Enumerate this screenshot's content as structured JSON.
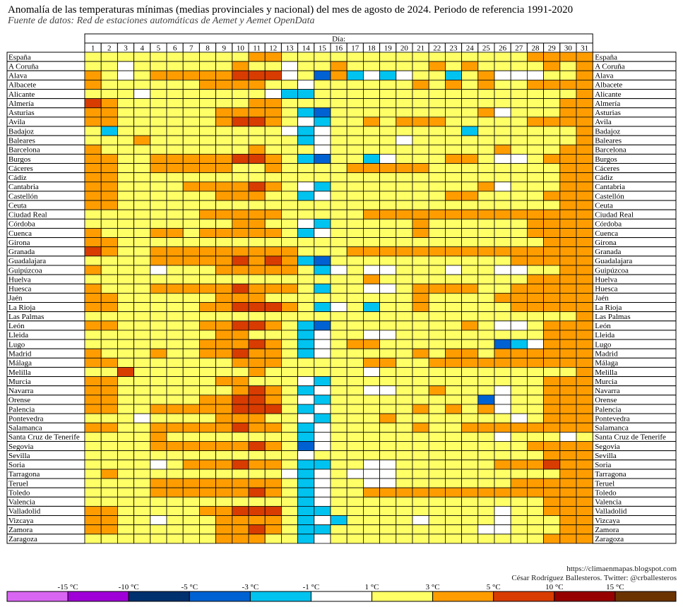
{
  "title": "Anomalía de las temperaturas mínimas (medias provinciales y nacional) del mes de agosto de 2024. Periodo de referencia 1991-2020",
  "subtitle": "Fuente de datos: Red de estaciones automáticas de Aemet y Aemet OpenData",
  "credits": {
    "url": "https://climaenmapas.blogspot.com",
    "author": "César Rodríguez Ballesteros. Twitter: @crballesteros"
  },
  "colors": {
    "grid": "#000000",
    "class_colors": [
      "#d966f2",
      "#a000d8",
      "#00306e",
      "#0062d2",
      "#00c3f0",
      "#ffffff",
      "#ffff66",
      "#ff9d00",
      "#d83c00",
      "#960000",
      "#6b3300"
    ]
  },
  "chart_data": {
    "type": "heatmap",
    "title": "Anomalía de las temperaturas mínimas (medias provinciales y nacional) del mes de agosto de 2024. Periodo de referencia 1991-2020",
    "column_header": "Día:",
    "columns": [
      "1",
      "2",
      "3",
      "4",
      "5",
      "6",
      "7",
      "8",
      "9",
      "10",
      "11",
      "12",
      "13",
      "14",
      "15",
      "16",
      "17",
      "18",
      "19",
      "20",
      "21",
      "22",
      "23",
      "24",
      "25",
      "26",
      "27",
      "28",
      "29",
      "30",
      "31"
    ],
    "rows": [
      "España",
      "A Coruña",
      "Alava",
      "Albacete",
      "Alicante",
      "Almería",
      "Asturias",
      "Avila",
      "Badajoz",
      "Baleares",
      "Barcelona",
      "Burgos",
      "Cáceres",
      "Cádiz",
      "Cantabria",
      "Castellón",
      "Ceuta",
      "Ciudad Real",
      "Córdoba",
      "Cuenca",
      "Girona",
      "Granada",
      "Guadalajara",
      "Guipúzcoa",
      "Huelva",
      "Huesca",
      "Jaén",
      "La Rioja",
      "Las Palmas",
      "León",
      "Lleida",
      "Lugo",
      "Madrid",
      "Málaga",
      "Melilla",
      "Murcia",
      "Navarra",
      "Orense",
      "Palencia",
      "Pontevedra",
      "Salamanca",
      "Santa Cruz de Tenerife",
      "Segovia",
      "Sevilla",
      "Soria",
      "Tarragona",
      "Teruel",
      "Toledo",
      "Valencia",
      "Valladolid",
      "Vizcaya",
      "Zamora",
      "Zaragoza"
    ],
    "classes": [
      "<-15 °C",
      "-15 a -10 °C",
      "-10 a -5 °C",
      "-5 a -3 °C",
      "-3 a -1 °C",
      "-1 a 1 °C",
      "1 a 3 °C",
      "3 a 5 °C",
      "5 a 10 °C",
      "10 a 15 °C",
      ">15 °C"
    ],
    "legend_ticks": [
      "-15 °C",
      "-10 °C",
      "-5 °C",
      "-3 °C",
      "-1 °C",
      "1 °C",
      "3 °C",
      "5 °C",
      "10 °C",
      "15 °C"
    ],
    "cell_classes": [
      "6666666666776666666666666667777",
      "6656666667665667666667676666767",
      "7656777778885637454566467555667",
      "7666666777766566666676767667777",
      "6665666666654466666666666666667",
      "8766666666776666666666666666677",
      "7766666677776436666666667566677",
      "7766666678876546676777666667777",
      "6466666666665456666666646666667",
      "6667666666666456666566666666667",
      "7666666666766656666666666766677",
      "7766777778876436645666776556777",
      "7766777776676666777776666666677",
      "7766666666666666666666666666677",
      "7766667777876546666666667566677",
      "7766666677766456666666776666777",
      "7766666666666666666666666666677",
      "6666666777776666677777777777777",
      "6666666667766546666676666667777",
      "7666776777776456666676666667777",
      "7766666666666666666666666666777",
      "8766777777777666777777777777777",
      "6666777778787436666666666677777",
      "7666566677777645655666566556677",
      "6666666666666666676666666667777",
      "7666777778777646655677776677777",
      "7766666677766666666676666777777",
      "7766666778887645646676666677777",
      "6666666666666666666666666666667",
      "7766666778876436666666676556777",
      "6666666677666456655666666666777",
      "6666666777876456776666666345777",
      "7666766778776456666676776777777",
      "7766666667776666677667777777777",
      "6686666666766666656666666666667",
      "7766666677666546666666666666777",
      "7766666667876456655667666566777",
      "7766666778876546666666663566777",
      "7766777778886456666676767566777",
      "6665666677766546667666666656777",
      "7766777778776456666676677777777",
      "6666766666666456666666666566656",
      "6666777777876356666666666667777",
      "6666666666666566666666666666777",
      "6666567778776446655666666777877",
      "6766666666665456555666666666677",
      "6666777777776456655666666677777",
      "6666777777876456677777777777777",
      "6666666666666456666666666666777",
      "7766666778886446666666666566777",
      "7766566677776454666656666566677",
      "7766666677876446666666665566677",
      "6666666677766456666666666666777"
    ]
  }
}
